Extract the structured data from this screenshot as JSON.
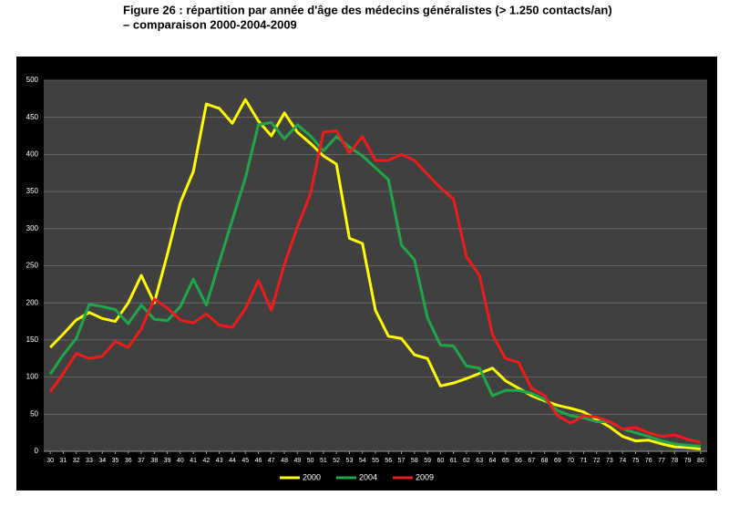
{
  "chart_data": {
    "type": "line",
    "title": "Figure 26 : répartition par année d'âge des médecins généralistes (> 1.250 contacts/an)",
    "subtitle": "– comparaison 2000-2004-2009",
    "x": [
      30,
      31,
      32,
      33,
      34,
      35,
      36,
      37,
      38,
      39,
      40,
      41,
      42,
      43,
      44,
      45,
      46,
      47,
      48,
      49,
      50,
      51,
      52,
      53,
      54,
      55,
      56,
      57,
      58,
      59,
      60,
      61,
      62,
      63,
      64,
      65,
      66,
      67,
      68,
      69,
      70,
      71,
      72,
      73,
      74,
      75,
      76,
      77,
      78,
      79,
      80
    ],
    "xlim": [
      29.5,
      80.5
    ],
    "xticks": [
      30,
      31,
      32,
      33,
      34,
      35,
      36,
      37,
      38,
      39,
      40,
      41,
      42,
      43,
      44,
      45,
      46,
      47,
      48,
      49,
      50,
      51,
      52,
      53,
      54,
      55,
      56,
      57,
      58,
      59,
      60,
      61,
      62,
      63,
      64,
      65,
      66,
      67,
      68,
      69,
      70,
      71,
      72,
      73,
      74,
      75,
      76,
      77,
      78,
      79,
      80
    ],
    "ylim": [
      0,
      500
    ],
    "yticks": [
      0,
      50,
      100,
      150,
      200,
      250,
      300,
      350,
      400,
      450,
      500
    ],
    "grid": true,
    "legend": "bottom",
    "series": [
      {
        "name": "2000",
        "color": "#ffff00",
        "values": [
          140,
          158,
          177,
          187,
          179,
          175,
          200,
          237,
          200,
          265,
          335,
          377,
          468,
          462,
          442,
          474,
          445,
          425,
          456,
          430,
          415,
          398,
          387,
          287,
          280,
          190,
          155,
          152,
          130,
          125,
          88,
          92,
          98,
          105,
          112,
          95,
          85,
          75,
          68,
          62,
          58,
          53,
          43,
          33,
          20,
          14,
          15,
          10,
          6,
          5,
          3
        ]
      },
      {
        "name": "2004",
        "color": "#1fa64a",
        "values": [
          104,
          130,
          152,
          198,
          195,
          191,
          172,
          197,
          178,
          176,
          195,
          232,
          197,
          255,
          312,
          368,
          440,
          443,
          421,
          440,
          425,
          405,
          424,
          410,
          398,
          382,
          366,
          278,
          258,
          180,
          143,
          142,
          115,
          112,
          75,
          82,
          82,
          78,
          70,
          55,
          48,
          45,
          40,
          40,
          30,
          25,
          20,
          14,
          10,
          8,
          7
        ]
      },
      {
        "name": "2009",
        "color": "#ee1c1c",
        "values": [
          80,
          105,
          132,
          125,
          128,
          148,
          140,
          165,
          205,
          193,
          177,
          173,
          185,
          170,
          167,
          192,
          230,
          190,
          252,
          302,
          347,
          430,
          432,
          402,
          424,
          392,
          392,
          400,
          392,
          373,
          355,
          340,
          262,
          237,
          157,
          125,
          120,
          85,
          75,
          48,
          38,
          48,
          46,
          40,
          30,
          32,
          25,
          20,
          22,
          16,
          12
        ]
      }
    ]
  }
}
